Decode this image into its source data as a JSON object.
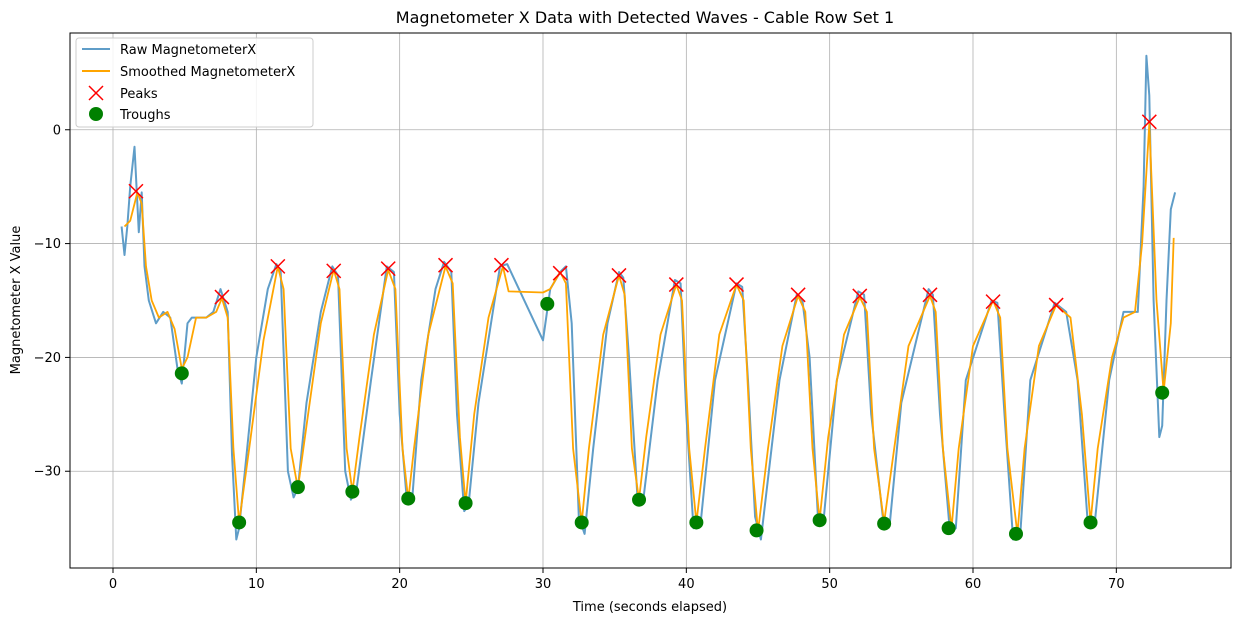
{
  "chart_data": {
    "type": "line",
    "title": "Magnetometer X Data with Detected Waves - Cable Row Set 1",
    "xlabel": "Time (seconds elapsed)",
    "ylabel": "Magnetometer X Value",
    "xlim": [
      -3,
      78
    ],
    "ylim": [
      -38.5,
      8.5
    ],
    "xticks": [
      0,
      10,
      20,
      30,
      40,
      50,
      60,
      70
    ],
    "yticks": [
      0,
      -10,
      -20,
      -30
    ],
    "grid": true,
    "legend_position": "top-left",
    "colors": {
      "raw": "#5f9dc8",
      "smoothed": "#ffa500",
      "peaks": "#ff0000",
      "troughs": "#008000"
    },
    "series": [
      {
        "name": "Raw MagnetometerX",
        "style": "line",
        "x": [
          0.6,
          0.8,
          1.0,
          1.2,
          1.5,
          1.8,
          2.0,
          2.2,
          2.5,
          3.0,
          3.5,
          4.0,
          4.5,
          4.8,
          5.2,
          5.5,
          6.0,
          6.5,
          7.0,
          7.5,
          8.0,
          8.3,
          8.6,
          8.8,
          9.2,
          10.0,
          10.8,
          11.4,
          11.7,
          12.2,
          12.6,
          12.9,
          13.5,
          14.5,
          15.3,
          15.7,
          16.2,
          16.6,
          17.0,
          18.0,
          19.1,
          19.6,
          20.0,
          20.5,
          20.9,
          21.5,
          22.5,
          23.1,
          23.6,
          24.0,
          24.5,
          24.8,
          25.5,
          26.5,
          27.0,
          27.5,
          30.0,
          30.5,
          31.2,
          31.6,
          32.0,
          32.5,
          32.9,
          33.5,
          34.5,
          35.3,
          35.6,
          36.0,
          36.6,
          37.0,
          38.0,
          39.2,
          39.6,
          40.0,
          40.5,
          41.0,
          42.0,
          43.5,
          43.9,
          44.3,
          44.8,
          45.2,
          46.5,
          47.7,
          48.1,
          48.6,
          49.2,
          49.6,
          50.5,
          52.0,
          52.4,
          52.9,
          53.8,
          54.2,
          55.0,
          56.9,
          57.2,
          57.7,
          58.4,
          58.8,
          59.5,
          61.3,
          61.7,
          62.2,
          62.8,
          63.3,
          64.0,
          65.7,
          66.5,
          67.3,
          68.0,
          68.5,
          69.5,
          70.5,
          71.5,
          71.9,
          72.1,
          72.3,
          72.6,
          73.0,
          73.2,
          73.5,
          73.8,
          74.1
        ],
        "values": [
          -8.5,
          -11.0,
          -8.5,
          -5.0,
          -1.5,
          -9.0,
          -5.5,
          -12.0,
          -15.0,
          -17.0,
          -16.0,
          -16.5,
          -21.0,
          -22.3,
          -17.0,
          -16.5,
          -16.5,
          -16.5,
          -16.0,
          -14.0,
          -16.0,
          -28.5,
          -36.0,
          -35.0,
          -30.0,
          -20.0,
          -14.0,
          -11.8,
          -12.5,
          -30.0,
          -32.3,
          -31.5,
          -24.0,
          -16.0,
          -12.0,
          -12.8,
          -30.0,
          -32.5,
          -31.5,
          -22.0,
          -12.0,
          -12.5,
          -25.0,
          -32.5,
          -32.0,
          -22.0,
          -14.0,
          -11.6,
          -12.5,
          -25.0,
          -33.5,
          -33.0,
          -24.0,
          -16.0,
          -12.0,
          -11.8,
          -18.5,
          -14.0,
          -12.5,
          -12.0,
          -17.0,
          -34.0,
          -35.5,
          -28.0,
          -17.0,
          -12.5,
          -13.0,
          -20.0,
          -32.5,
          -32.5,
          -22.0,
          -13.2,
          -13.5,
          -25.0,
          -35.0,
          -34.5,
          -22.0,
          -13.5,
          -13.8,
          -22.0,
          -34.0,
          -36.0,
          -22.0,
          -14.5,
          -15.0,
          -20.0,
          -34.5,
          -34.0,
          -22.0,
          -14.2,
          -14.5,
          -25.0,
          -35.0,
          -34.5,
          -24.0,
          -14.0,
          -14.5,
          -25.0,
          -35.5,
          -35.0,
          -22.0,
          -15.0,
          -15.2,
          -25.0,
          -36.0,
          -35.5,
          -22.0,
          -15.2,
          -16.0,
          -22.0,
          -34.5,
          -34.5,
          -22.0,
          -16.0,
          -16.0,
          -5.0,
          6.5,
          3.0,
          -15.0,
          -27.0,
          -26.0,
          -15.0,
          -7.0,
          -5.5
        ]
      },
      {
        "name": "Smoothed MagnetometerX",
        "style": "line",
        "x": [
          0.8,
          1.2,
          1.7,
          2.0,
          2.3,
          2.7,
          3.2,
          3.8,
          4.3,
          4.8,
          5.2,
          5.8,
          6.5,
          7.2,
          7.6,
          8.0,
          8.4,
          8.8,
          9.5,
          10.5,
          11.5,
          11.9,
          12.4,
          12.9,
          13.5,
          14.5,
          15.4,
          15.8,
          16.3,
          16.7,
          17.2,
          18.2,
          19.2,
          19.7,
          20.2,
          20.6,
          21.0,
          22.0,
          23.2,
          23.7,
          24.2,
          24.6,
          25.2,
          26.2,
          27.2,
          27.6,
          30.0,
          30.5,
          31.2,
          31.6,
          32.1,
          32.7,
          33.2,
          34.2,
          35.3,
          35.7,
          36.2,
          36.7,
          37.2,
          38.2,
          39.3,
          39.7,
          40.2,
          40.7,
          41.3,
          42.3,
          43.5,
          44.0,
          44.5,
          45.0,
          45.7,
          46.7,
          47.8,
          48.3,
          48.8,
          49.3,
          49.9,
          51.0,
          52.1,
          52.6,
          53.1,
          53.8,
          54.5,
          55.5,
          57.0,
          57.4,
          57.9,
          58.5,
          59.0,
          60.0,
          61.4,
          61.9,
          62.4,
          63.1,
          63.6,
          64.6,
          65.8,
          66.8,
          67.6,
          68.2,
          68.7,
          69.7,
          70.5,
          71.3,
          71.8,
          72.3,
          72.8,
          73.3,
          73.8,
          74.0
        ],
        "values": [
          -8.5,
          -8.0,
          -5.5,
          -6.5,
          -12.0,
          -15.0,
          -16.5,
          -16.0,
          -17.5,
          -21.0,
          -20.0,
          -16.5,
          -16.5,
          -16.0,
          -14.8,
          -16.5,
          -28.0,
          -34.5,
          -28.0,
          -18.5,
          -12.0,
          -14.0,
          -28.0,
          -31.5,
          -26.0,
          -17.0,
          -12.3,
          -14.0,
          -28.0,
          -31.8,
          -27.0,
          -18.0,
          -12.3,
          -14.0,
          -28.0,
          -32.5,
          -28.0,
          -18.0,
          -12.0,
          -13.5,
          -27.0,
          -32.8,
          -25.0,
          -16.5,
          -12.0,
          -14.2,
          -14.3,
          -14.0,
          -12.5,
          -13.5,
          -28.0,
          -34.5,
          -28.0,
          -18.0,
          -12.8,
          -14.5,
          -28.0,
          -32.5,
          -27.0,
          -18.0,
          -13.6,
          -15.0,
          -28.0,
          -34.5,
          -28.0,
          -18.0,
          -13.6,
          -15.0,
          -28.0,
          -35.3,
          -28.0,
          -19.0,
          -14.6,
          -16.0,
          -28.0,
          -34.3,
          -27.0,
          -18.0,
          -14.7,
          -16.0,
          -28.0,
          -34.5,
          -28.0,
          -19.0,
          -14.6,
          -16.0,
          -28.0,
          -35.0,
          -28.0,
          -19.0,
          -15.0,
          -16.5,
          -28.0,
          -35.5,
          -28.0,
          -19.0,
          -15.4,
          -16.5,
          -25.0,
          -34.5,
          -28.0,
          -20.0,
          -16.5,
          -16.0,
          -10.0,
          0.5,
          -15.0,
          -23.0,
          -17.0,
          -9.5
        ]
      },
      {
        "name": "Peaks",
        "style": "marker-x",
        "x": [
          1.6,
          7.6,
          11.5,
          15.4,
          19.2,
          23.2,
          27.1,
          31.2,
          35.3,
          39.3,
          43.5,
          47.8,
          52.1,
          57.0,
          61.4,
          65.8,
          72.3
        ],
        "values": [
          -5.4,
          -14.7,
          -12.0,
          -12.4,
          -12.2,
          -11.9,
          -11.9,
          -12.6,
          -12.8,
          -13.6,
          -13.6,
          -14.5,
          -14.6,
          -14.5,
          -15.1,
          -15.4,
          0.7
        ]
      },
      {
        "name": "Troughs",
        "style": "marker-circle",
        "x": [
          4.8,
          8.8,
          12.9,
          16.7,
          20.6,
          24.6,
          30.3,
          32.7,
          36.7,
          40.7,
          44.9,
          49.3,
          53.8,
          58.3,
          63.0,
          68.2,
          73.2
        ],
        "values": [
          -21.4,
          -34.5,
          -31.4,
          -31.8,
          -32.4,
          -32.8,
          -15.3,
          -34.5,
          -32.5,
          -34.5,
          -35.2,
          -34.3,
          -34.6,
          -35.0,
          -35.5,
          -34.5,
          -23.1
        ]
      }
    ]
  }
}
